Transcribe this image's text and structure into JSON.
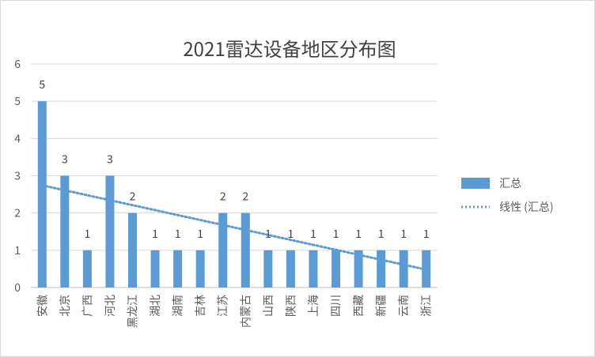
{
  "chart_data": {
    "type": "bar",
    "title": "2021雷达设备地区分布图",
    "categories": [
      "安徽",
      "北京",
      "广西",
      "河北",
      "黑龙江",
      "湖北",
      "湖南",
      "吉林",
      "江苏",
      "内蒙古",
      "山西",
      "陕西",
      "上海",
      "四川",
      "西藏",
      "新疆",
      "云南",
      "浙江"
    ],
    "series": [
      {
        "name": "汇总",
        "values": [
          5,
          3,
          1,
          3,
          2,
          1,
          1,
          1,
          2,
          2,
          1,
          1,
          1,
          1,
          1,
          1,
          1,
          1
        ],
        "color": "#5b9bd5",
        "data_labels": true
      }
    ],
    "trendline": {
      "name": "线性 (汇总)",
      "type": "linear",
      "color": "#5b9bd5",
      "style": "dotted"
    },
    "ylim": [
      0,
      6
    ],
    "yticks": [
      0,
      1,
      2,
      3,
      4,
      5,
      6
    ],
    "xlabel": "",
    "ylabel": "",
    "grid": "horizontal",
    "legend": "right"
  }
}
